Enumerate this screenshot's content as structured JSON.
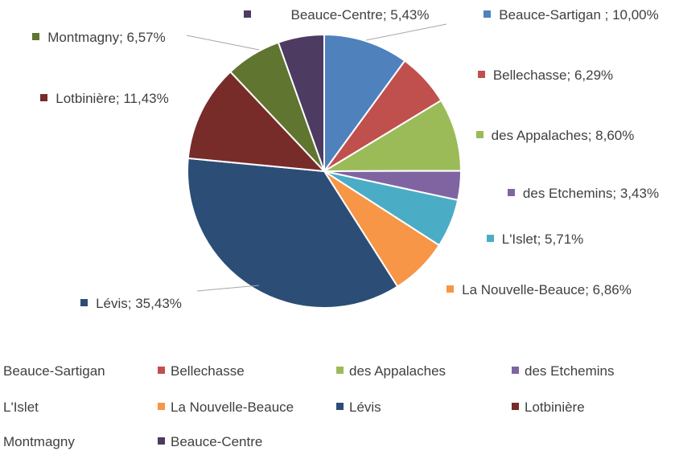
{
  "chart_data": {
    "type": "pie",
    "categories": [
      "Beauce-Sartigan",
      "Bellechasse",
      "des Appalaches",
      "des Etchemins",
      "L'Islet",
      "La Nouvelle-Beauce",
      "Lévis",
      "Lotbinière",
      "Montmagny",
      "Beauce-Centre"
    ],
    "values": [
      10.0,
      6.29,
      8.6,
      3.43,
      5.71,
      6.86,
      35.43,
      11.43,
      6.57,
      5.43
    ],
    "value_labels": [
      "Beauce-Sartigan ; 10,00%",
      "Bellechasse; 6,29%",
      "des Appalaches; 8,60%",
      "des Etchemins; 3,43%",
      "L'Islet; 5,71%",
      "La Nouvelle-Beauce; 6,86%",
      "Lévis; 35,43%",
      "Lotbinière; 11,43%",
      "Montmagny; 6,57%",
      "Beauce-Centre; 5,43%"
    ],
    "colors": [
      "#4f81bd",
      "#c0504d",
      "#9bbb59",
      "#8064a2",
      "#4bacc6",
      "#f79646",
      "#2c4d75",
      "#772c2a",
      "#5f7530",
      "#4d3b62"
    ],
    "legend": "bottom"
  }
}
